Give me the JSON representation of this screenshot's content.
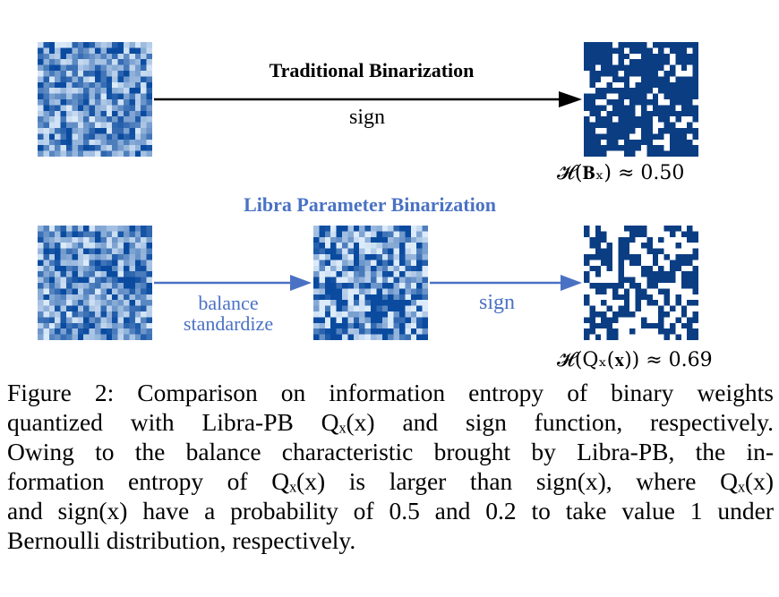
{
  "figure": {
    "traditional_title": "Traditional Binarization",
    "traditional_arrow_label": "sign",
    "traditional_entropy": "𝓗(𝐁ₓ) ≈ 0.50",
    "libra_title": "Libra Parameter Binarization",
    "libra_arrow1_label_line1": "balance",
    "libra_arrow1_label_line2": "standardize",
    "libra_arrow2_label": "sign",
    "libra_entropy": "𝓗(Qₓ(𝐱)) ≈ 0.69",
    "colors": {
      "traditional": "#000000",
      "libra": "#4a72c4",
      "binary": "#0b3d82"
    },
    "binary_one_probability": {
      "traditional": 0.2,
      "libra": 0.5
    }
  },
  "caption": {
    "lines": [
      "Figure 2: Comparison on information entropy of binary weights",
      "quantized with Libra-PB Qₓ(x) and sign function, respectively.",
      "Owing to the balance characteristic brought by Libra-PB, the in-",
      "formation entropy of Qₓ(x) is larger than sign(x), where Qₓ(x)",
      "and sign(x) have a probability of 0.5 and 0.2 to take value 1 under",
      "Bernoulli distribution, respectively."
    ]
  }
}
